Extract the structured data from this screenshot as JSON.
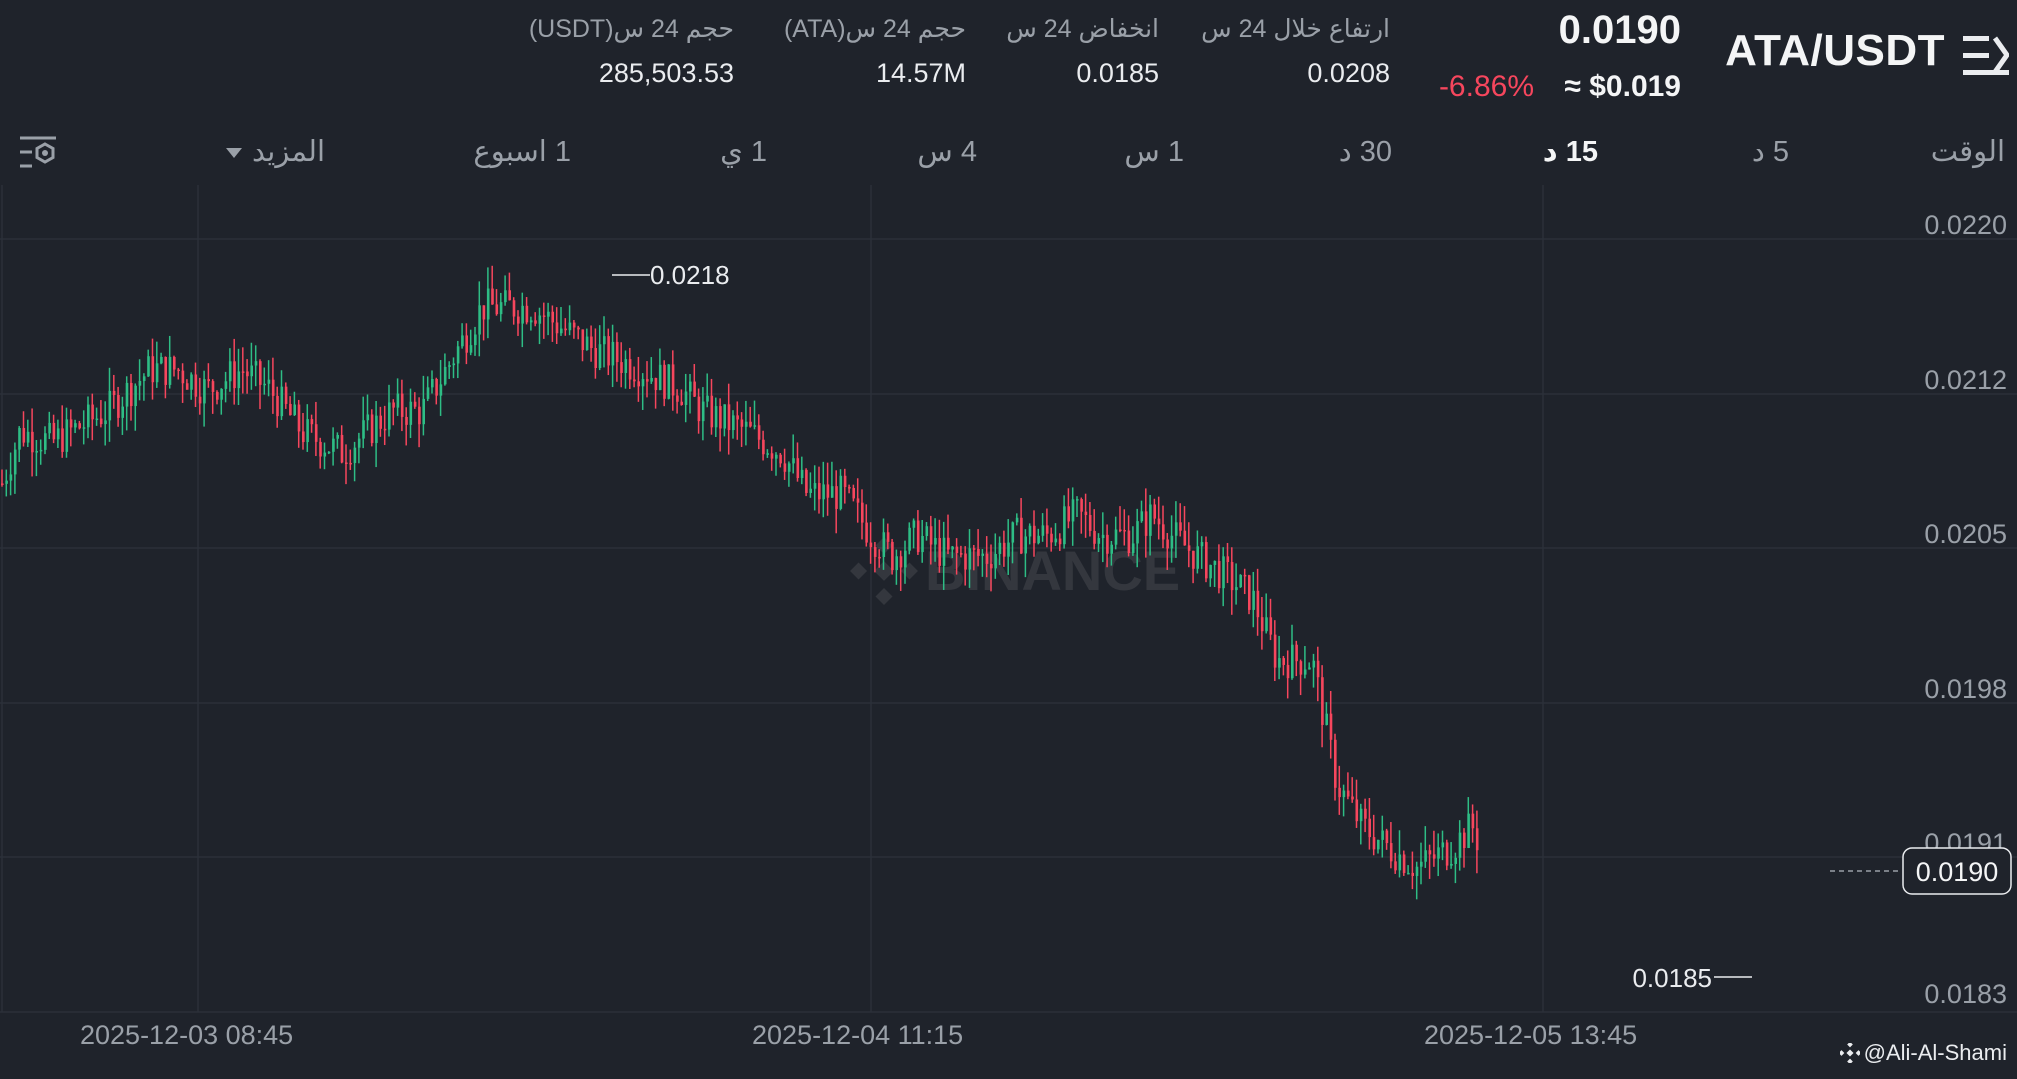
{
  "header": {
    "pair": "ATA/USDT",
    "last_price": "0.0190",
    "usd_price": "≈ $0.019",
    "change": "-6.86%",
    "stats": [
      {
        "label": "ارتفاع خلال 24 س",
        "value": "0.0208"
      },
      {
        "label": "انخفاض 24 س",
        "value": "0.0185"
      },
      {
        "label": "حجم 24 س(ATA)",
        "value": "14.57M"
      },
      {
        "label": "حجم 24 س(USDT)",
        "value": "285,503.53"
      }
    ]
  },
  "tabs": [
    {
      "label": "الوقت"
    },
    {
      "label": "5 د"
    },
    {
      "label": "15 د"
    },
    {
      "label": "30 د"
    },
    {
      "label": "1 س"
    },
    {
      "label": "4 س"
    },
    {
      "label": "1 ي"
    },
    {
      "label": "1 اسبوع"
    },
    {
      "label": "المزيد"
    }
  ],
  "active_tab": "15 د",
  "chart_data": {
    "type": "candlestick",
    "price_ticks": [
      "0.0220",
      "0.0212",
      "0.0205",
      "0.0198",
      "0.0191",
      "0.0183"
    ],
    "time_labels": [
      "2025-12-03 08:45",
      "2025-12-04 11:15",
      "2025-12-05 13:45"
    ],
    "high_marker": "0.0218",
    "low_marker": "0.0185",
    "current_price_tag": "0.0190",
    "current_price": 0.019,
    "watermark": "BINANCE",
    "up_color": "#2ebd85",
    "down_color": "#f6465d",
    "path": [
      [
        0,
        0.02075
      ],
      [
        18,
        0.021
      ],
      [
        50,
        0.02095
      ],
      [
        105,
        0.0211
      ],
      [
        148,
        0.0213
      ],
      [
        175,
        0.0213
      ],
      [
        205,
        0.0212
      ],
      [
        240,
        0.0213
      ],
      [
        268,
        0.0212
      ],
      [
        300,
        0.021
      ],
      [
        340,
        0.0209
      ],
      [
        390,
        0.0211
      ],
      [
        420,
        0.0211
      ],
      [
        480,
        0.0216
      ],
      [
        530,
        0.0216
      ],
      [
        560,
        0.0215
      ],
      [
        590,
        0.0214
      ],
      [
        640,
        0.0213
      ],
      [
        680,
        0.0212
      ],
      [
        700,
        0.0211
      ],
      [
        745,
        0.021
      ],
      [
        780,
        0.0209
      ],
      [
        805,
        0.0207
      ],
      [
        840,
        0.0207
      ],
      [
        870,
        0.0205
      ],
      [
        890,
        0.0204
      ],
      [
        915,
        0.0205
      ],
      [
        945,
        0.0204
      ],
      [
        985,
        0.0204
      ],
      [
        1015,
        0.0205
      ],
      [
        1045,
        0.0205
      ],
      [
        1075,
        0.0206
      ],
      [
        1100,
        0.0205
      ],
      [
        1130,
        0.0205
      ],
      [
        1150,
        0.0206
      ],
      [
        1170,
        0.0205
      ],
      [
        1195,
        0.0204
      ],
      [
        1225,
        0.0203
      ],
      [
        1250,
        0.0202
      ],
      [
        1275,
        0.0199
      ],
      [
        1310,
        0.0199
      ],
      [
        1335,
        0.0193
      ],
      [
        1360,
        0.0191
      ],
      [
        1385,
        0.019
      ],
      [
        1415,
        0.0189
      ],
      [
        1450,
        0.019
      ],
      [
        1470,
        0.0191
      ],
      [
        1478,
        0.019
      ]
    ]
  },
  "watermark_credit": "@Ali-Al-Shami"
}
